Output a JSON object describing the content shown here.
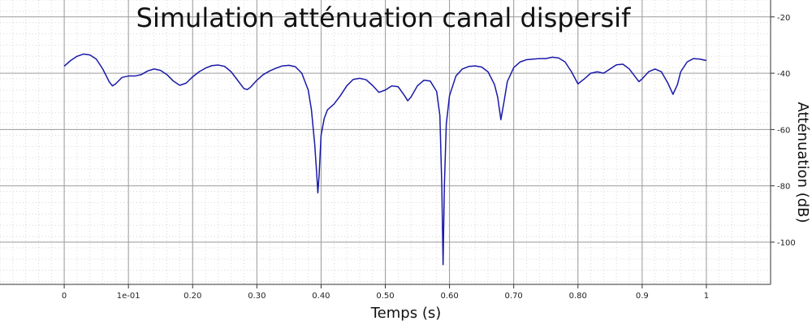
{
  "chart_data": {
    "type": "line",
    "title": "Simulation atténuation canal dispersif",
    "xlabel": "Temps (s)",
    "ylabel": "Atténuation (dB)",
    "xlim": [
      -0.1,
      1.1
    ],
    "ylim": [
      -115,
      -14
    ],
    "x_ticks": [
      {
        "value": 0,
        "label": "0"
      },
      {
        "value": 0.1,
        "label": "1e-01"
      },
      {
        "value": 0.2,
        "label": "0.20"
      },
      {
        "value": 0.3,
        "label": "0.30"
      },
      {
        "value": 0.4,
        "label": "0.40"
      },
      {
        "value": 0.5,
        "label": "0.50"
      },
      {
        "value": 0.6,
        "label": "0.60"
      },
      {
        "value": 0.7,
        "label": "0.70"
      },
      {
        "value": 0.8,
        "label": "0.80"
      },
      {
        "value": 0.9,
        "label": "0.9"
      },
      {
        "value": 1.0,
        "label": "1"
      }
    ],
    "y_ticks": [
      {
        "value": -20,
        "label": "-20"
      },
      {
        "value": -40,
        "label": "-40"
      },
      {
        "value": -60,
        "label": "-60"
      },
      {
        "value": -80,
        "label": "-80"
      },
      {
        "value": -100,
        "label": "-100"
      }
    ],
    "grid": true,
    "minor_grid": true,
    "y_axis_position": "right",
    "line_color": "#1a1aa8",
    "series": [
      {
        "points": [
          [
            0.0,
            -37.5
          ],
          [
            0.01,
            -35.5
          ],
          [
            0.02,
            -34.0
          ],
          [
            0.03,
            -33.2
          ],
          [
            0.04,
            -33.5
          ],
          [
            0.05,
            -35.0
          ],
          [
            0.06,
            -38.5
          ],
          [
            0.07,
            -43.0
          ],
          [
            0.075,
            -44.5
          ],
          [
            0.08,
            -43.8
          ],
          [
            0.09,
            -41.5
          ],
          [
            0.1,
            -41.0
          ],
          [
            0.11,
            -41.0
          ],
          [
            0.12,
            -40.5
          ],
          [
            0.13,
            -39.2
          ],
          [
            0.14,
            -38.5
          ],
          [
            0.15,
            -39.0
          ],
          [
            0.16,
            -40.5
          ],
          [
            0.17,
            -42.8
          ],
          [
            0.18,
            -44.3
          ],
          [
            0.19,
            -43.5
          ],
          [
            0.2,
            -41.3
          ],
          [
            0.21,
            -39.5
          ],
          [
            0.22,
            -38.2
          ],
          [
            0.23,
            -37.3
          ],
          [
            0.24,
            -37.1
          ],
          [
            0.25,
            -37.6
          ],
          [
            0.26,
            -39.5
          ],
          [
            0.27,
            -42.5
          ],
          [
            0.28,
            -45.5
          ],
          [
            0.285,
            -45.8
          ],
          [
            0.29,
            -45.0
          ],
          [
            0.3,
            -42.5
          ],
          [
            0.31,
            -40.5
          ],
          [
            0.32,
            -39.2
          ],
          [
            0.33,
            -38.2
          ],
          [
            0.34,
            -37.4
          ],
          [
            0.35,
            -37.2
          ],
          [
            0.36,
            -37.7
          ],
          [
            0.37,
            -40.0
          ],
          [
            0.38,
            -46.0
          ],
          [
            0.385,
            -53.0
          ],
          [
            0.39,
            -65.0
          ],
          [
            0.393,
            -75.0
          ],
          [
            0.395,
            -82.5
          ],
          [
            0.397,
            -76.0
          ],
          [
            0.4,
            -62.0
          ],
          [
            0.405,
            -56.0
          ],
          [
            0.41,
            -53.0
          ],
          [
            0.42,
            -51.0
          ],
          [
            0.43,
            -48.0
          ],
          [
            0.44,
            -44.5
          ],
          [
            0.45,
            -42.2
          ],
          [
            0.46,
            -41.8
          ],
          [
            0.47,
            -42.3
          ],
          [
            0.48,
            -44.3
          ],
          [
            0.49,
            -46.8
          ],
          [
            0.5,
            -46.0
          ],
          [
            0.51,
            -44.5
          ],
          [
            0.52,
            -44.8
          ],
          [
            0.53,
            -48.0
          ],
          [
            0.535,
            -49.8
          ],
          [
            0.54,
            -48.5
          ],
          [
            0.55,
            -44.5
          ],
          [
            0.56,
            -42.5
          ],
          [
            0.57,
            -42.8
          ],
          [
            0.58,
            -46.5
          ],
          [
            0.585,
            -55.0
          ],
          [
            0.588,
            -80.0
          ],
          [
            0.59,
            -108.0
          ],
          [
            0.592,
            -80.0
          ],
          [
            0.595,
            -58.0
          ],
          [
            0.6,
            -48.0
          ],
          [
            0.61,
            -41.0
          ],
          [
            0.62,
            -38.5
          ],
          [
            0.63,
            -37.6
          ],
          [
            0.64,
            -37.4
          ],
          [
            0.65,
            -37.8
          ],
          [
            0.66,
            -39.5
          ],
          [
            0.67,
            -44.0
          ],
          [
            0.675,
            -48.5
          ],
          [
            0.68,
            -56.5
          ],
          [
            0.685,
            -50.0
          ],
          [
            0.69,
            -43.0
          ],
          [
            0.7,
            -38.0
          ],
          [
            0.71,
            -36.0
          ],
          [
            0.72,
            -35.2
          ],
          [
            0.73,
            -35.0
          ],
          [
            0.74,
            -34.8
          ],
          [
            0.75,
            -34.8
          ],
          [
            0.76,
            -34.3
          ],
          [
            0.77,
            -34.6
          ],
          [
            0.78,
            -36.0
          ],
          [
            0.79,
            -39.5
          ],
          [
            0.8,
            -43.8
          ],
          [
            0.81,
            -42.0
          ],
          [
            0.82,
            -40.0
          ],
          [
            0.83,
            -39.5
          ],
          [
            0.84,
            -40.0
          ],
          [
            0.85,
            -38.5
          ],
          [
            0.86,
            -37.0
          ],
          [
            0.87,
            -36.8
          ],
          [
            0.88,
            -38.5
          ],
          [
            0.89,
            -41.5
          ],
          [
            0.895,
            -43.0
          ],
          [
            0.9,
            -42.0
          ],
          [
            0.91,
            -39.5
          ],
          [
            0.92,
            -38.5
          ],
          [
            0.93,
            -39.5
          ],
          [
            0.94,
            -43.5
          ],
          [
            0.948,
            -47.5
          ],
          [
            0.955,
            -44.0
          ],
          [
            0.96,
            -39.5
          ],
          [
            0.97,
            -36.0
          ],
          [
            0.98,
            -34.8
          ],
          [
            0.99,
            -35.0
          ],
          [
            1.0,
            -35.5
          ]
        ]
      }
    ]
  }
}
